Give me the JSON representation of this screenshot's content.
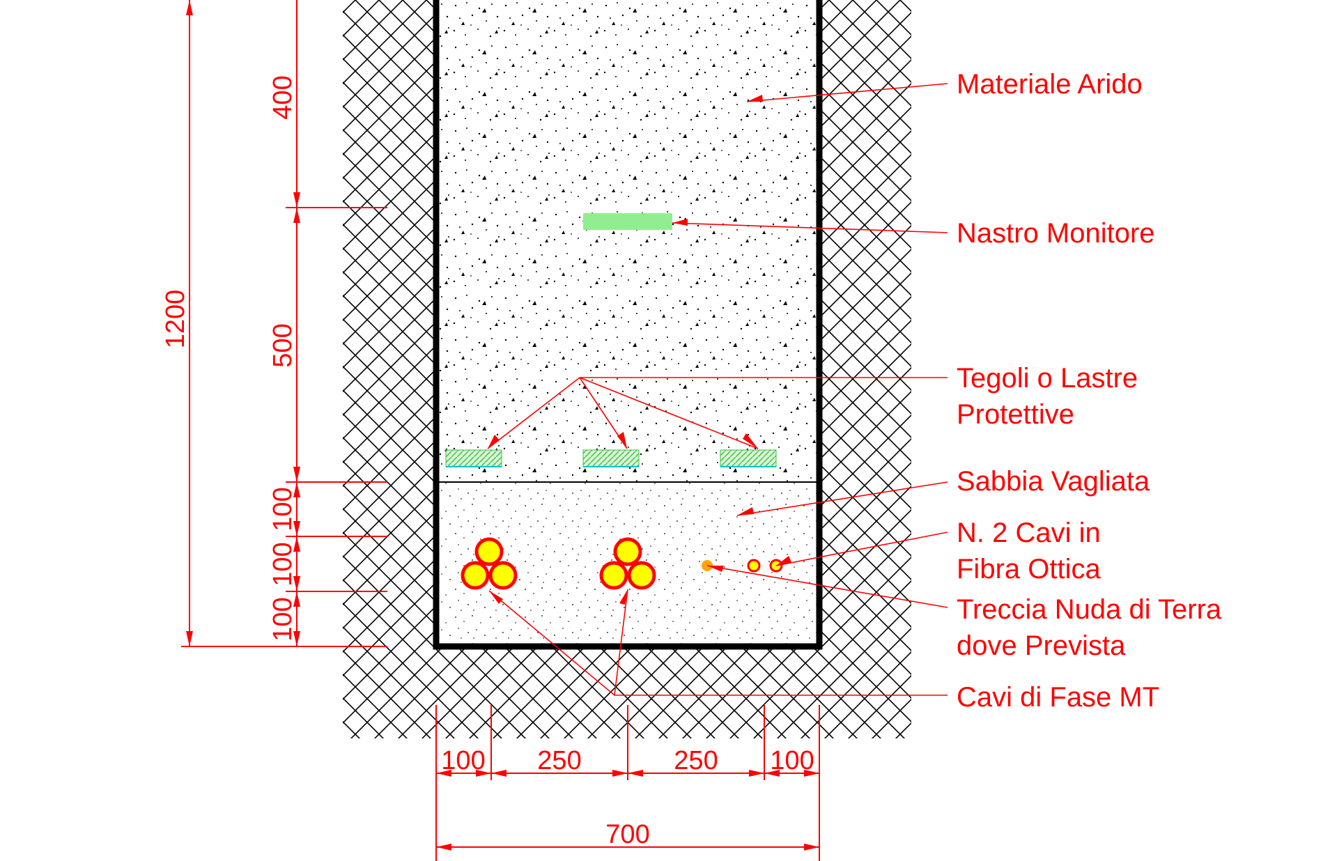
{
  "labels": {
    "materiale_arido": "Materiale Arido",
    "nastro_monitore": "Nastro Monitore",
    "tegoli_line1": "Tegoli o Lastre",
    "tegoli_line2": "Protettive",
    "sabbia_vagliata": "Sabbia Vagliata",
    "fibra_line1": "N. 2 Cavi in",
    "fibra_line2": "Fibra Ottica",
    "treccia_line1": "Treccia Nuda di Terra",
    "treccia_line2": "dove Prevista",
    "cavi_fase": "Cavi di Fase MT"
  },
  "dimensions": {
    "vertical_total": "1200",
    "vertical_400": "400",
    "vertical_500": "500",
    "vertical_100_a": "100",
    "vertical_100_b": "100",
    "vertical_100_c": "100",
    "horizontal_100_left": "100",
    "horizontal_250_left": "250",
    "horizontal_250_right": "250",
    "horizontal_100_right": "100",
    "horizontal_total": "700"
  },
  "colors": {
    "annotation": "#ff0000",
    "nastro": "#90ee90",
    "tegoli": "#7fdc7f",
    "tegoli_edge": "#00c8c8",
    "cable_fill": "#ffff00",
    "cable_ring": "#ff0000",
    "ground_wire": "#ffa500",
    "trench_wall": "#000000"
  }
}
